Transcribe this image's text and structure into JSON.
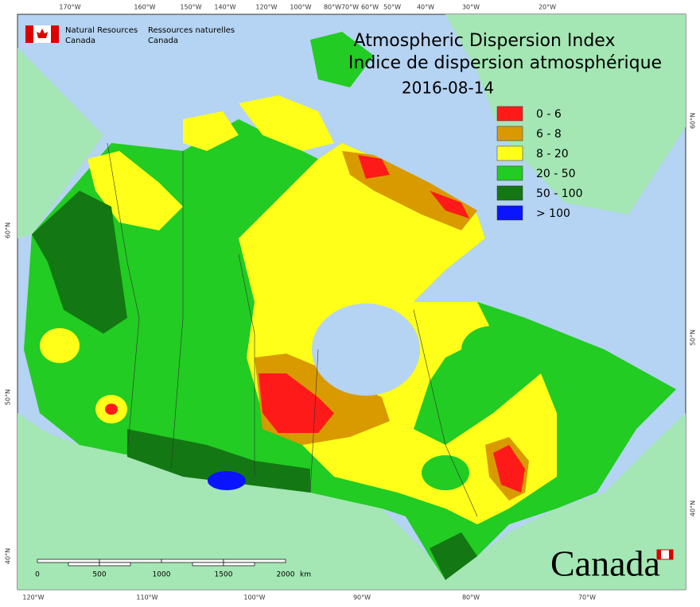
{
  "header": {
    "org_en": [
      "Natural Resources",
      "Canada"
    ],
    "org_fr": [
      "Ressources naturelles",
      "Canada"
    ]
  },
  "title": [
    "Atmospheric Dispersion Index",
    "Indice de dispersion atmosphérique"
  ],
  "date": "2016-08-14",
  "legend": [
    {
      "label": "0 - 6",
      "color": "#ff1a1a"
    },
    {
      "label": "6 - 8",
      "color": "#d99a00"
    },
    {
      "label": "8 - 20",
      "color": "#ffff1a"
    },
    {
      "label": "20 - 50",
      "color": "#22cc22"
    },
    {
      "label": "50 - 100",
      "color": "#137813"
    },
    {
      "label": "> 100",
      "color": "#0a14ff"
    }
  ],
  "top_longitudes": [
    "170°W",
    "160°W",
    "150°W",
    "140°W",
    "120°W",
    "100°W",
    "80°W",
    "70°W",
    "60°W",
    "50°W",
    "40°W",
    "30°W",
    "20°W"
  ],
  "bottom_longitudes": [
    "120°W",
    "110°W",
    "100°W",
    "90°W",
    "80°W",
    "70°W"
  ],
  "left_latitudes": [
    "60°N",
    "50°N",
    "40°N"
  ],
  "right_latitudes": [
    "60°N",
    "50°N",
    "40°N"
  ],
  "scale_bar": {
    "labels": [
      "0",
      "500",
      "1000",
      "1500",
      "2000"
    ],
    "unit": "km"
  },
  "wordmark": "Canada"
}
